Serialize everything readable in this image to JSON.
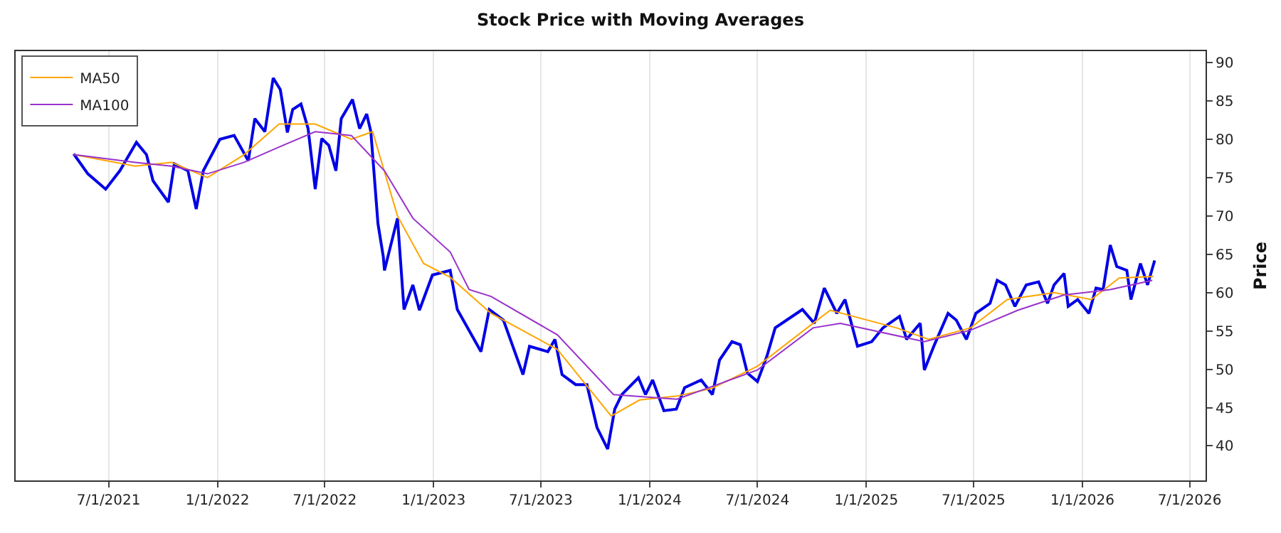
{
  "chart_data": {
    "type": "line",
    "title": "Stock Price with Moving Averages",
    "ylabel": "Price",
    "xlim": [
      "2021-01-25",
      "2026-07-28"
    ],
    "xticks": [
      {
        "value": "2021-07-01",
        "label": "7/1/2021"
      },
      {
        "value": "2022-01-01",
        "label": "1/1/2022"
      },
      {
        "value": "2022-07-01",
        "label": "7/1/2022"
      },
      {
        "value": "2023-01-01",
        "label": "1/1/2023"
      },
      {
        "value": "2023-07-01",
        "label": "7/1/2023"
      },
      {
        "value": "2024-01-01",
        "label": "1/1/2024"
      },
      {
        "value": "2024-07-01",
        "label": "7/1/2024"
      },
      {
        "value": "2025-01-01",
        "label": "1/1/2025"
      },
      {
        "value": "2025-07-01",
        "label": "7/1/2025"
      },
      {
        "value": "2026-01-01",
        "label": "1/1/2026"
      },
      {
        "value": "2026-07-01",
        "label": "7/1/2026"
      }
    ],
    "ylim": [
      35.5,
      91.5
    ],
    "yticks": [
      40,
      45,
      50,
      55,
      60,
      65,
      70,
      75,
      80,
      85,
      90
    ],
    "grid": "x",
    "legend": "top left",
    "marker": "none",
    "line_style": "solid",
    "series": [
      {
        "color": "#0000e6",
        "x": [
          "2021-05-03",
          "2021-05-27",
          "2021-06-26",
          "2021-07-20",
          "2021-08-17",
          "2021-09-03",
          "2021-09-14",
          "2021-10-10",
          "2021-10-20",
          "2021-11-12",
          "2021-11-26",
          "2021-12-08",
          "2022-01-05",
          "2022-01-29",
          "2022-02-22",
          "2022-03-05",
          "2022-03-22",
          "2022-04-05",
          "2022-04-17",
          "2022-04-29",
          "2022-05-08",
          "2022-05-22",
          "2022-06-03",
          "2022-06-15",
          "2022-06-26",
          "2022-07-08",
          "2022-07-20",
          "2022-07-29",
          "2022-08-17",
          "2022-08-29",
          "2022-09-10",
          "2022-09-17",
          "2022-09-29",
          "2022-10-08",
          "2022-10-10",
          "2022-11-01",
          "2022-11-12",
          "2022-11-27",
          "2022-12-08",
          "2022-12-30",
          "2023-01-29",
          "2023-02-10",
          "2023-03-06",
          "2023-03-22",
          "2023-04-05",
          "2023-04-29",
          "2023-06-01",
          "2023-06-12",
          "2023-07-13",
          "2023-07-25",
          "2023-08-06",
          "2023-08-29",
          "2023-09-17",
          "2023-10-04",
          "2023-10-22",
          "2023-11-03",
          "2023-11-15",
          "2023-12-13",
          "2023-12-25",
          "2024-01-06",
          "2024-01-25",
          "2024-02-15",
          "2024-02-29",
          "2024-03-28",
          "2024-04-16",
          "2024-04-28",
          "2024-05-19",
          "2024-06-02",
          "2024-06-14",
          "2024-07-01",
          "2024-07-17",
          "2024-07-31",
          "2024-09-15",
          "2024-10-05",
          "2024-10-22",
          "2024-11-12",
          "2024-11-26",
          "2024-12-17",
          "2025-01-10",
          "2025-01-29",
          "2025-02-26",
          "2025-03-10",
          "2025-04-02",
          "2025-04-09",
          "2025-04-26",
          "2025-05-19",
          "2025-06-02",
          "2025-06-19",
          "2025-07-05",
          "2025-07-29",
          "2025-08-10",
          "2025-08-24",
          "2025-09-09",
          "2025-09-28",
          "2025-10-19",
          "2025-11-03",
          "2025-11-14",
          "2025-12-01",
          "2025-12-08",
          "2025-12-24",
          "2026-01-12",
          "2026-01-24",
          "2026-02-05",
          "2026-02-17",
          "2026-02-28",
          "2026-03-17",
          "2026-03-24",
          "2026-04-09",
          "2026-04-21",
          "2026-05-03"
        ],
        "values": [
          78.1,
          75.5,
          73.5,
          75.9,
          79.6,
          78,
          74.6,
          71.8,
          76.8,
          75.9,
          70.9,
          75.9,
          80,
          80.5,
          77.2,
          82.7,
          81,
          88,
          86.5,
          80.9,
          83.9,
          84.6,
          81.4,
          73.5,
          80.1,
          79.2,
          75.9,
          82.7,
          85.2,
          81.4,
          83.3,
          81,
          69,
          64.7,
          62.9,
          69.7,
          57.8,
          61,
          57.7,
          62.3,
          62.9,
          57.8,
          54.5,
          52.3,
          57.8,
          56.4,
          49.3,
          53,
          52.3,
          53.9,
          49.3,
          48,
          48,
          42.4,
          39.6,
          44.8,
          46.7,
          48.9,
          46.7,
          48.6,
          44.6,
          44.8,
          47.6,
          48.6,
          46.7,
          51.2,
          53.6,
          53.2,
          49.5,
          48.4,
          51.7,
          55.4,
          57.8,
          56,
          60.6,
          57.3,
          59.1,
          53,
          53.6,
          55.4,
          56.9,
          53.9,
          56,
          49.9,
          53.2,
          57.3,
          56.4,
          53.9,
          57.3,
          58.6,
          61.6,
          61,
          58.2,
          61,
          61.4,
          58.6,
          61,
          62.5,
          58.2,
          59.1,
          57.3,
          60.6,
          60.4,
          66.2,
          63.4,
          62.9,
          59.1,
          63.8,
          61,
          64.2
        ]
      },
      {
        "name": "MA50",
        "color": "#ffa500",
        "x": [
          "2021-05-03",
          "2021-08-15",
          "2021-10-15",
          "2021-12-15",
          "2022-02-15",
          "2022-04-15",
          "2022-06-15",
          "2022-08-15",
          "2022-09-20",
          "2022-11-01",
          "2022-12-15",
          "2023-01-29",
          "2023-04-08",
          "2023-07-29",
          "2023-10-28",
          "2023-12-15",
          "2024-02-16",
          "2024-04-15",
          "2024-07-01",
          "2024-10-03",
          "2024-11-01",
          "2025-02-21",
          "2025-04-16",
          "2025-06-26",
          "2025-08-27",
          "2025-11-14",
          "2026-01-16",
          "2026-03-04",
          "2026-05-01"
        ],
        "values": [
          78,
          76.5,
          77,
          75,
          78,
          82,
          82,
          80,
          81,
          70,
          63.8,
          62,
          57.3,
          52.6,
          43.9,
          46,
          46.5,
          47.5,
          50.4,
          56,
          57.7,
          55.4,
          53.9,
          55.4,
          59.1,
          60,
          59.1,
          61.9,
          62.1
        ]
      },
      {
        "name": "MA100",
        "color": "#9932cc",
        "x": [
          "2021-05-03",
          "2021-08-15",
          "2021-10-15",
          "2021-12-15",
          "2022-02-15",
          "2022-04-15",
          "2022-06-15",
          "2022-08-15",
          "2022-10-10",
          "2022-11-27",
          "2023-01-29",
          "2023-03-02",
          "2023-04-08",
          "2023-07-29",
          "2023-11-01",
          "2024-02-16",
          "2024-07-01",
          "2024-10-03",
          "2024-11-18",
          "2025-04-09",
          "2025-06-26",
          "2025-09-14",
          "2025-12-01",
          "2026-02-17",
          "2026-04-29"
        ],
        "values": [
          78,
          77,
          76.5,
          75.5,
          77,
          79,
          81,
          80.5,
          75.9,
          69.7,
          65.3,
          60.4,
          59.5,
          54.5,
          46.7,
          46.1,
          49.9,
          55.4,
          56,
          53.6,
          55.1,
          57.7,
          59.7,
          60.4,
          61.6
        ]
      }
    ]
  }
}
